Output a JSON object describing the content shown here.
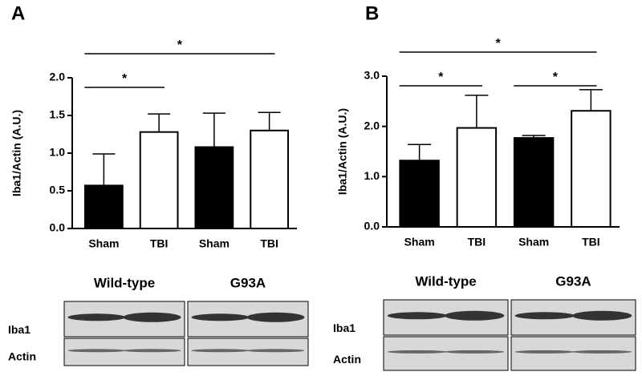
{
  "chart_data": [
    {
      "type": "bar",
      "title": "A",
      "y_label": "Iba1/Actin (A.U.)",
      "categories": [
        "Sham",
        "TBI",
        "Sham",
        "TBI"
      ],
      "values": [
        0.57,
        1.28,
        1.08,
        1.3
      ],
      "errors": [
        0.42,
        0.24,
        0.45,
        0.24
      ],
      "colors": [
        "#000000",
        "#ffffff",
        "#000000",
        "#ffffff"
      ],
      "ylim": [
        0,
        2.0
      ],
      "yticks": [
        {
          "value": 0,
          "label": "0.0"
        },
        {
          "value": 0.5,
          "label": "0.5"
        },
        {
          "value": 1,
          "label": "1.0"
        },
        {
          "value": 1.5,
          "label": "1.5"
        },
        {
          "value": 2,
          "label": "2.0"
        }
      ],
      "comparisons": [
        {
          "from": 0,
          "to": 1,
          "label": "*"
        },
        {
          "from": 0,
          "to": 3,
          "label": "*"
        }
      ],
      "blot": {
        "groups": [
          "Wild-type",
          "G93A"
        ],
        "rows": [
          "Iba1",
          "Actin"
        ]
      }
    },
    {
      "type": "bar",
      "title": "B",
      "y_label": "Iba1/Actin (A.U.)",
      "categories": [
        "Sham",
        "TBI",
        "Sham",
        "TBI"
      ],
      "values": [
        1.32,
        1.97,
        1.77,
        2.31
      ],
      "errors": [
        0.32,
        0.65,
        0.05,
        0.42
      ],
      "colors": [
        "#000000",
        "#ffffff",
        "#000000",
        "#ffffff"
      ],
      "ylim": [
        0,
        3.0
      ],
      "yticks": [
        {
          "value": 0,
          "label": "0.0"
        },
        {
          "value": 1,
          "label": "1.0"
        },
        {
          "value": 2,
          "label": "2.0"
        },
        {
          "value": 3,
          "label": "3.0"
        }
      ],
      "comparisons": [
        {
          "from": 0,
          "to": 1,
          "label": "*"
        },
        {
          "from": 2,
          "to": 3,
          "label": "*"
        },
        {
          "from": 0,
          "to": 3,
          "label": "*"
        }
      ],
      "blot": {
        "groups": [
          "Wild-type",
          "G93A"
        ],
        "rows": [
          "Iba1",
          "Actin"
        ]
      }
    }
  ]
}
